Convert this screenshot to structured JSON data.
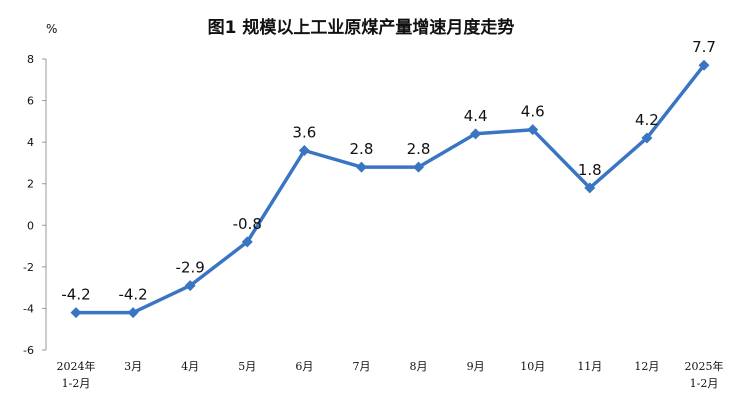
{
  "chart_data": {
    "type": "line",
    "title": "图1  规模以上工业原煤产量增速月度走势",
    "ylabel": "%",
    "xlabel": "",
    "ylim": [
      -6,
      8
    ],
    "yticks": [
      8,
      6,
      4,
      2,
      0,
      -2,
      -4,
      -6
    ],
    "ytick_labels": [
      "8",
      "6",
      "4",
      "2",
      "0",
      "-2",
      "-4",
      "-6"
    ],
    "grid": false,
    "categories": [
      [
        "2024年",
        "1-2月"
      ],
      [
        "3月"
      ],
      [
        "4月"
      ],
      [
        "5月"
      ],
      [
        "6月"
      ],
      [
        "7月"
      ],
      [
        "8月"
      ],
      [
        "9月"
      ],
      [
        "10月"
      ],
      [
        "11月"
      ],
      [
        "12月"
      ],
      [
        "2025年",
        "1-2月"
      ]
    ],
    "values": [
      -4.2,
      -4.2,
      -2.9,
      -0.8,
      3.6,
      2.8,
      2.8,
      4.4,
      4.6,
      1.8,
      4.2,
      7.7
    ],
    "data_labels": [
      "-4.2",
      "-4.2",
      "-2.9",
      "-0.8",
      "3.6",
      "2.8",
      "2.8",
      "4.4",
      "4.6",
      "1.8",
      "4.2",
      "7.7"
    ],
    "colors": {
      "line": "#3a75c4",
      "marker": "#3a75c4"
    }
  }
}
